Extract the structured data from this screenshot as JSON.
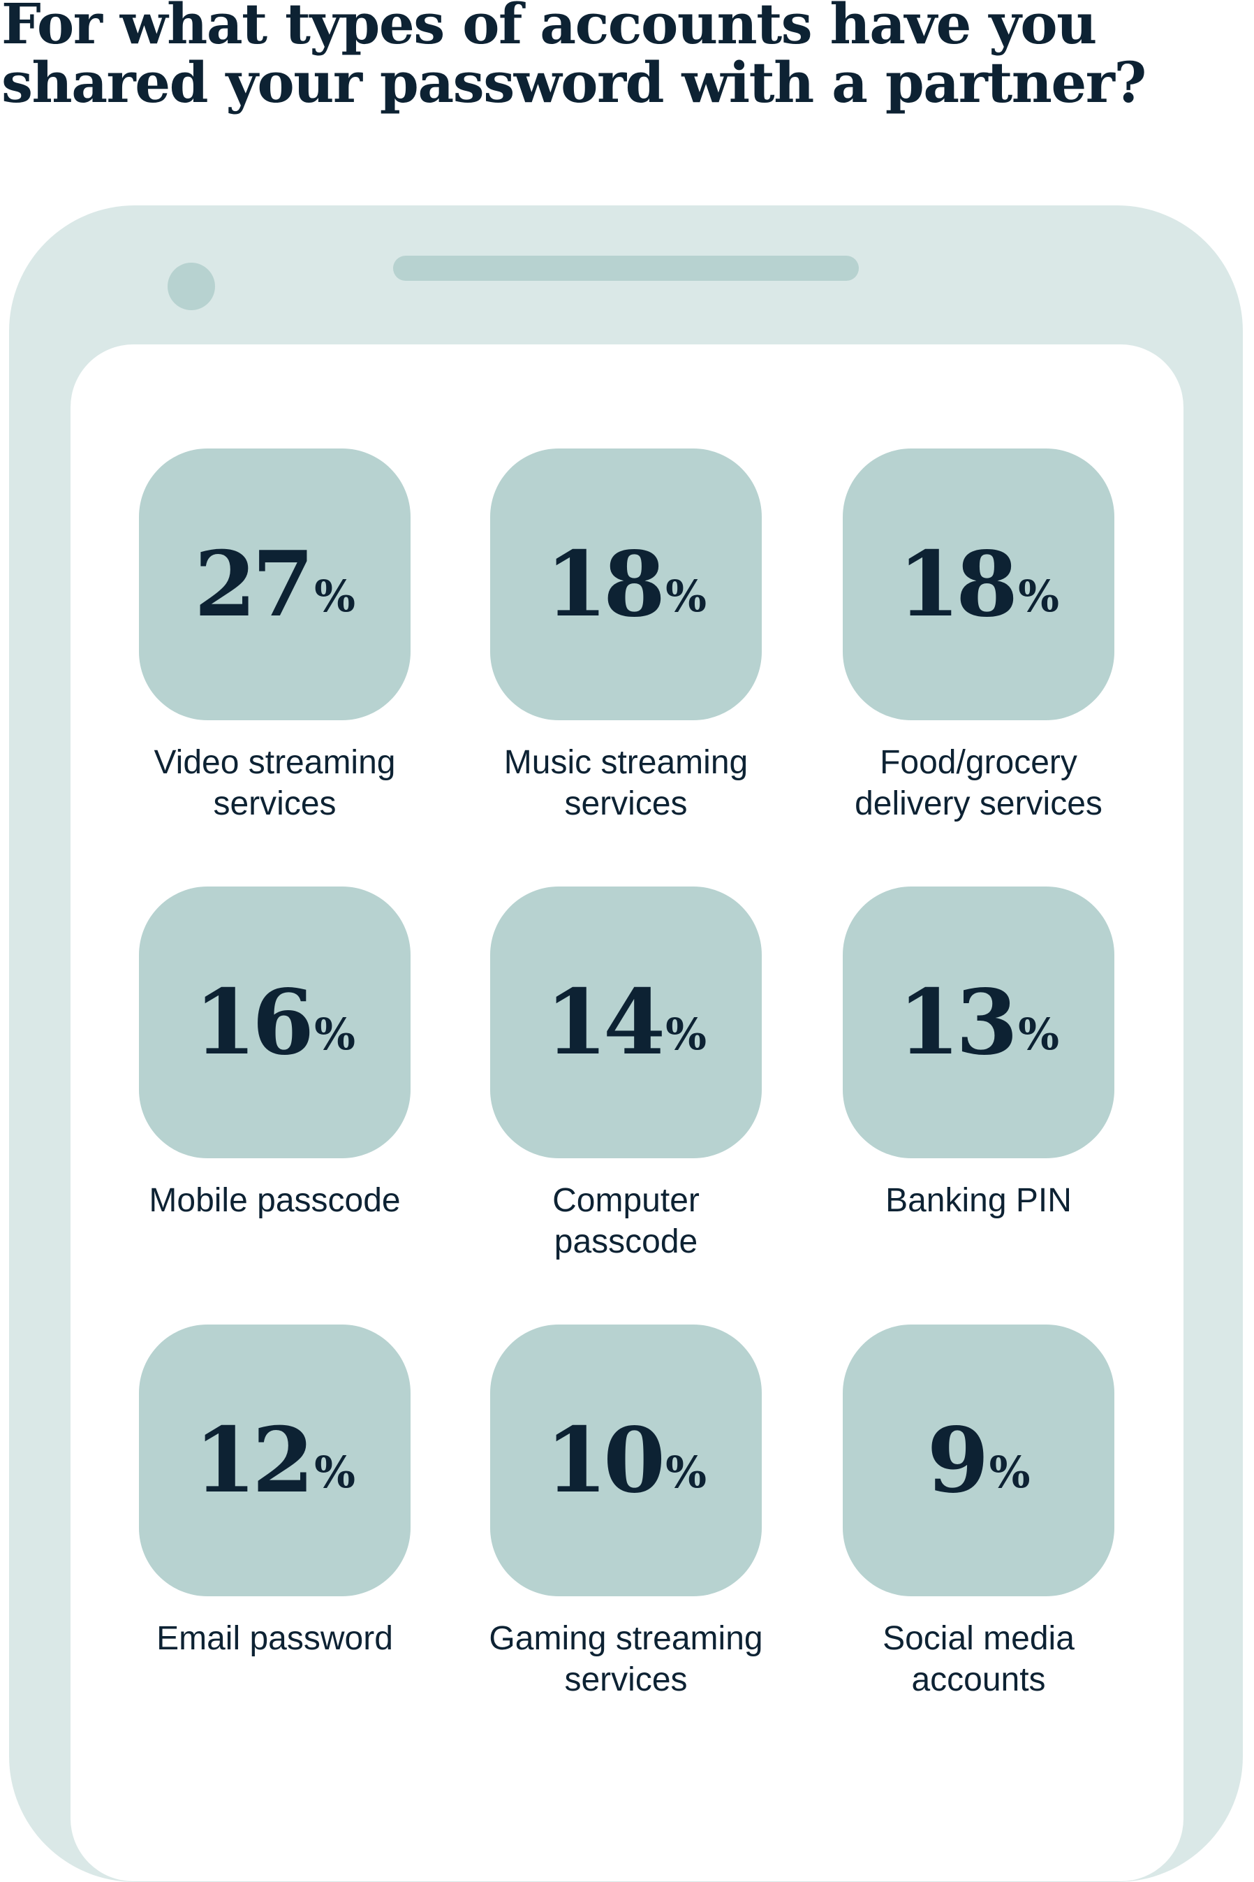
{
  "title": "For what types of accounts have you shared your password with a partner?",
  "colors": {
    "text": "#0d2233",
    "phone_frame": "#dae8e7",
    "tile": "#b7d2d0",
    "screen": "#ffffff"
  },
  "percent_sign": "%",
  "items": [
    {
      "value": "27",
      "label": "Video streaming\nservices"
    },
    {
      "value": "18",
      "label": "Music streaming\nservices"
    },
    {
      "value": "18",
      "label": "Food/grocery\ndelivery services"
    },
    {
      "value": "16",
      "label": "Mobile passcode"
    },
    {
      "value": "14",
      "label": "Computer\npasscode"
    },
    {
      "value": "13",
      "label": "Banking PIN"
    },
    {
      "value": "12",
      "label": "Email password"
    },
    {
      "value": "10",
      "label": "Gaming streaming\nservices"
    },
    {
      "value": "9",
      "label": "Social media\naccounts"
    }
  ]
}
